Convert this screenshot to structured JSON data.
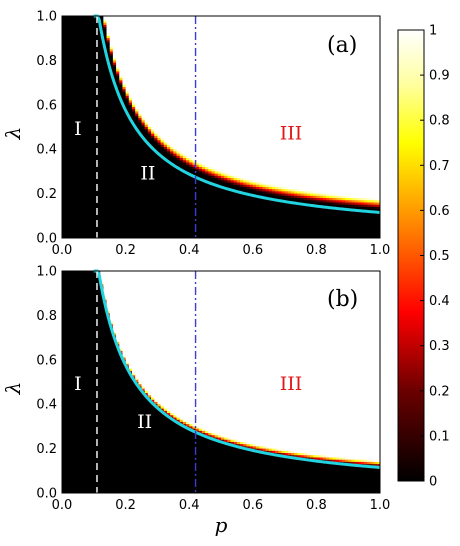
{
  "chart_data": [
    {
      "type": "heatmap",
      "panel_label": "(a)",
      "xlabel": "",
      "ylabel": "λ",
      "xlim": [
        0.0,
        1.0
      ],
      "ylim": [
        0.0,
        1.0
      ],
      "x_ticks": [
        "0.0",
        "0.2",
        "0.4",
        "0.6",
        "0.8",
        "1.0"
      ],
      "y_ticks": [
        "0.0",
        "0.2",
        "0.4",
        "0.6",
        "0.8",
        "1.0"
      ],
      "vertical_lines": [
        {
          "x": 0.11,
          "style": "dashed",
          "color": "#ffffff"
        },
        {
          "x": 0.42,
          "style": "dashdot",
          "color": "#3b3bd6"
        }
      ],
      "boundary_curve": {
        "color": "#22d3e0",
        "form": "lambda = 0.115 / p",
        "x_from": 0.1,
        "x_to": 1.0
      },
      "transition": {
        "threshold_factor": 1.1,
        "width": 0.05
      },
      "regions": [
        {
          "label": "I",
          "x": 0.05,
          "y": 0.49,
          "color": "#ffffff"
        },
        {
          "label": "II",
          "x": 0.27,
          "y": 0.29,
          "color": "#ffffff"
        },
        {
          "label": "III",
          "x": 0.72,
          "y": 0.47,
          "color": "#e01818"
        }
      ]
    },
    {
      "type": "heatmap",
      "panel_label": "(b)",
      "xlabel": "p",
      "ylabel": "λ",
      "xlim": [
        0.0,
        1.0
      ],
      "ylim": [
        0.0,
        1.0
      ],
      "x_ticks": [
        "0.0",
        "0.2",
        "0.4",
        "0.6",
        "0.8",
        "1.0"
      ],
      "y_ticks": [
        "0.0",
        "0.2",
        "0.4",
        "0.6",
        "0.8",
        "1.0"
      ],
      "vertical_lines": [
        {
          "x": 0.11,
          "style": "dashed",
          "color": "#ffffff"
        },
        {
          "x": 0.42,
          "style": "dashdot",
          "color": "#3b3bd6"
        }
      ],
      "boundary_curve": {
        "color": "#22d3e0",
        "form": "lambda = 0.115 / p",
        "x_from": 0.1,
        "x_to": 1.0
      },
      "transition": {
        "threshold_factor": 1.0,
        "width": 0.03
      },
      "regions": [
        {
          "label": "I",
          "x": 0.05,
          "y": 0.49,
          "color": "#ffffff"
        },
        {
          "label": "II",
          "x": 0.26,
          "y": 0.32,
          "color": "#ffffff"
        },
        {
          "label": "III",
          "x": 0.72,
          "y": 0.49,
          "color": "#e01818"
        }
      ]
    }
  ],
  "colorbar": {
    "colormap": "hot",
    "range": [
      0,
      1
    ],
    "ticks": [
      "0",
      "0.1",
      "0.2",
      "0.3",
      "0.4",
      "0.5",
      "0.6",
      "0.7",
      "0.8",
      "0.9",
      "1"
    ]
  }
}
